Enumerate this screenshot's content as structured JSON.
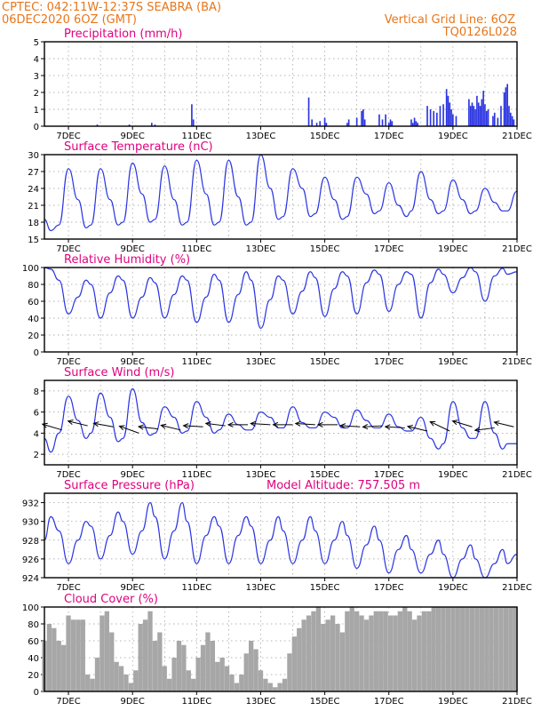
{
  "header": {
    "left_line1": "CPTEC:   042:11W-12:37S   SEABRA (BA)",
    "left_line2": "06DEC2020 6OZ (GMT)",
    "right_line1": "Vertical Grid Line: 6OZ",
    "right_line2": "TQ0126L028"
  },
  "colors": {
    "header": "#e8761a",
    "title": "#e0007f",
    "series": "#2a34e0",
    "cloud": "#a7a7a7"
  },
  "x_ticks": [
    "7DEC",
    "9DEC",
    "11DEC",
    "13DEC",
    "15DEC",
    "17DEC",
    "19DEC",
    "21DEC"
  ],
  "chart_data": [
    {
      "id": "precip",
      "type": "bar",
      "title": "Precipitation (mm/h)",
      "ylim": [
        0,
        5
      ],
      "yticks": [
        "0",
        "1",
        "2",
        "3",
        "4",
        "5"
      ],
      "x_range_days": [
        6.25,
        21
      ],
      "x": [
        7.9,
        8.9,
        9.6,
        9.7,
        10.85,
        10.9,
        14.5,
        14.6,
        14.75,
        14.85,
        15.0,
        15.05,
        15.7,
        15.75,
        16.0,
        16.15,
        16.2,
        16.25,
        16.7,
        16.8,
        16.9,
        17.0,
        17.05,
        17.1,
        17.7,
        17.75,
        17.8,
        17.85,
        17.9,
        18.2,
        18.3,
        18.4,
        18.5,
        18.6,
        18.7,
        18.8,
        18.85,
        18.9,
        18.95,
        19.0,
        19.1,
        19.5,
        19.55,
        19.6,
        19.65,
        19.7,
        19.75,
        19.8,
        19.85,
        19.9,
        19.95,
        20.0,
        20.05,
        20.1,
        20.25,
        20.3,
        20.4,
        20.5,
        20.6,
        20.65,
        20.7,
        20.75,
        20.8,
        20.85,
        20.9
      ],
      "values": [
        0.1,
        0.1,
        0.2,
        0.1,
        1.3,
        0.4,
        1.7,
        0.4,
        0.2,
        0.3,
        0.5,
        0.2,
        0.2,
        0.4,
        0.5,
        0.9,
        1.0,
        0.4,
        0.7,
        0.4,
        0.7,
        0.2,
        0.4,
        0.3,
        0.4,
        0.2,
        0.5,
        0.3,
        0.2,
        1.2,
        1.0,
        0.9,
        0.8,
        1.2,
        1.3,
        2.2,
        1.8,
        1.4,
        1.0,
        0.7,
        0.6,
        1.6,
        1.2,
        1.4,
        1.2,
        1.0,
        1.8,
        1.4,
        1.2,
        1.6,
        2.1,
        1.3,
        0.9,
        1.0,
        0.6,
        0.8,
        0.5,
        1.2,
        2.0,
        2.3,
        2.5,
        1.2,
        0.8,
        0.6,
        0.4
      ]
    },
    {
      "id": "temp",
      "type": "line",
      "title": "Surface Temperature (nC)",
      "ylim": [
        15,
        30
      ],
      "yticks": [
        "15",
        "18",
        "21",
        "24",
        "27",
        "30"
      ],
      "x_range_days": [
        6.25,
        21
      ],
      "x": [
        6.25,
        6.45,
        6.7,
        7.0,
        7.3,
        7.55,
        7.7,
        8.0,
        8.3,
        8.55,
        8.7,
        9.0,
        9.3,
        9.55,
        9.7,
        10.0,
        10.3,
        10.55,
        10.7,
        11.0,
        11.3,
        11.55,
        11.7,
        12.0,
        12.3,
        12.55,
        12.7,
        13.0,
        13.3,
        13.55,
        13.7,
        14.0,
        14.3,
        14.55,
        14.7,
        15.0,
        15.3,
        15.55,
        15.7,
        16.0,
        16.3,
        16.55,
        16.7,
        17.0,
        17.3,
        17.55,
        17.7,
        18.0,
        18.3,
        18.55,
        18.7,
        19.0,
        19.3,
        19.55,
        19.7,
        20.0,
        20.3,
        20.55,
        20.7,
        21.0
      ],
      "values": [
        18.5,
        16.5,
        17.5,
        27.5,
        22,
        17,
        17.5,
        27.5,
        22,
        17.5,
        18,
        28.5,
        23,
        18,
        18.5,
        28,
        22,
        17.5,
        18,
        29,
        23,
        17.5,
        18,
        29,
        22.5,
        17.5,
        18,
        30,
        24,
        18.5,
        19,
        27.5,
        24,
        19,
        19.5,
        26,
        22,
        18.5,
        19,
        26,
        23,
        19.5,
        20,
        25,
        21,
        19,
        20,
        27,
        22,
        19.5,
        20,
        25.5,
        22,
        19.5,
        20,
        24,
        21.5,
        20,
        20,
        23.5
      ]
    },
    {
      "id": "rh",
      "type": "line",
      "title": "Relative Humidity (%)",
      "ylim": [
        0,
        100
      ],
      "yticks": [
        "0",
        "20",
        "40",
        "60",
        "80",
        "100"
      ],
      "x_range_days": [
        6.25,
        21
      ],
      "x": [
        6.25,
        6.45,
        6.7,
        7.0,
        7.3,
        7.55,
        7.7,
        8.0,
        8.3,
        8.55,
        8.7,
        9.0,
        9.3,
        9.55,
        9.7,
        10.0,
        10.3,
        10.55,
        10.7,
        11.0,
        11.3,
        11.55,
        11.7,
        12.0,
        12.3,
        12.55,
        12.7,
        13.0,
        13.3,
        13.55,
        13.7,
        14.0,
        14.3,
        14.55,
        14.7,
        15.0,
        15.3,
        15.55,
        15.7,
        16.0,
        16.3,
        16.55,
        16.7,
        17.0,
        17.3,
        17.55,
        17.7,
        18.0,
        18.3,
        18.55,
        18.7,
        19.0,
        19.3,
        19.55,
        19.7,
        20.0,
        20.3,
        20.55,
        20.7,
        21.0
      ],
      "values": [
        100,
        98,
        85,
        45,
        65,
        85,
        80,
        40,
        70,
        90,
        85,
        40,
        65,
        88,
        82,
        40,
        68,
        90,
        85,
        35,
        65,
        92,
        85,
        35,
        68,
        95,
        85,
        28,
        62,
        90,
        85,
        45,
        72,
        95,
        88,
        42,
        75,
        95,
        90,
        45,
        82,
        97,
        92,
        48,
        80,
        95,
        92,
        40,
        82,
        98,
        92,
        70,
        88,
        100,
        95,
        60,
        90,
        99,
        92,
        95
      ]
    },
    {
      "id": "wind",
      "type": "line",
      "title": "Surface Wind (m/s)",
      "ylim": [
        1,
        9
      ],
      "yticks": [
        "2",
        "4",
        "6",
        "8"
      ],
      "x_range_days": [
        6.25,
        21
      ],
      "x": [
        6.25,
        6.45,
        6.7,
        7.0,
        7.3,
        7.55,
        7.7,
        8.0,
        8.3,
        8.55,
        8.7,
        9.0,
        9.3,
        9.55,
        9.7,
        10.0,
        10.3,
        10.55,
        10.7,
        11.0,
        11.3,
        11.55,
        11.7,
        12.0,
        12.3,
        12.55,
        12.7,
        13.0,
        13.3,
        13.55,
        13.7,
        14.0,
        14.3,
        14.55,
        14.7,
        15.0,
        15.3,
        15.55,
        15.7,
        16.0,
        16.3,
        16.55,
        16.7,
        17.0,
        17.3,
        17.55,
        17.7,
        18.0,
        18.3,
        18.55,
        18.7,
        19.0,
        19.3,
        19.55,
        19.7,
        20.0,
        20.3,
        20.55,
        20.7,
        21.0
      ],
      "values": [
        3.5,
        2.2,
        4,
        7.5,
        5.2,
        3.5,
        4,
        7.8,
        5.5,
        3.2,
        3.5,
        8.2,
        5,
        3.8,
        4,
        6.5,
        5.5,
        4,
        4.2,
        7,
        5.5,
        4,
        4.3,
        5.8,
        4.8,
        4.3,
        4.3,
        6,
        5.5,
        4.5,
        4.5,
        6.5,
        5,
        4.5,
        4.5,
        6,
        5.5,
        4.5,
        4.5,
        6.2,
        5.2,
        4.5,
        4.5,
        5.8,
        4.6,
        4.2,
        4.2,
        5.5,
        3.5,
        2.5,
        3,
        7,
        4.5,
        3.5,
        3.5,
        7,
        4,
        2.5,
        3,
        3
      ]
    },
    {
      "id": "pressure",
      "type": "line",
      "title": "Surface Pressure (hPa)",
      "annotation": "Model Altitude: 757.505 m",
      "ylim": [
        924,
        933
      ],
      "yticks": [
        "924",
        "926",
        "928",
        "930",
        "932"
      ],
      "x_range_days": [
        6.25,
        21
      ],
      "x": [
        6.25,
        6.45,
        6.7,
        7.0,
        7.3,
        7.55,
        7.7,
        8.0,
        8.3,
        8.55,
        8.7,
        9.0,
        9.3,
        9.55,
        9.7,
        10.0,
        10.3,
        10.55,
        10.7,
        11.0,
        11.3,
        11.55,
        11.7,
        12.0,
        12.3,
        12.55,
        12.7,
        13.0,
        13.3,
        13.55,
        13.7,
        14.0,
        14.3,
        14.55,
        14.7,
        15.0,
        15.3,
        15.55,
        15.7,
        16.0,
        16.3,
        16.55,
        16.7,
        17.0,
        17.3,
        17.55,
        17.7,
        18.0,
        18.3,
        18.55,
        18.7,
        19.0,
        19.3,
        19.55,
        19.7,
        20.0,
        20.3,
        20.55,
        20.7,
        21.0
      ],
      "values": [
        928,
        930.5,
        929,
        925.5,
        928,
        930,
        929.5,
        926,
        928.5,
        931,
        930,
        926.5,
        929,
        932,
        930.5,
        926,
        929,
        932,
        930,
        925.5,
        928.5,
        930.5,
        929.5,
        925.5,
        928.5,
        930.5,
        929.5,
        925.5,
        928,
        930.5,
        929,
        925.5,
        928,
        930.5,
        929,
        925.5,
        928,
        930,
        928.5,
        925,
        927.5,
        929.5,
        928,
        924.5,
        927,
        928.5,
        927,
        924.5,
        926.5,
        928,
        926.5,
        924,
        926,
        927.5,
        926,
        924,
        925.5,
        927,
        925.5,
        926.5
      ]
    },
    {
      "id": "cloud",
      "type": "bar",
      "title": "Cloud Cover (%)",
      "ylim": [
        0,
        100
      ],
      "yticks": [
        "0",
        "20",
        "40",
        "60",
        "80",
        "100"
      ],
      "x_range_days": [
        6.25,
        21
      ],
      "x": [
        6.25,
        6.4,
        6.55,
        6.7,
        6.85,
        7.0,
        7.15,
        7.3,
        7.45,
        7.6,
        7.75,
        7.9,
        8.05,
        8.2,
        8.35,
        8.5,
        8.65,
        8.8,
        8.95,
        9.1,
        9.25,
        9.4,
        9.55,
        9.7,
        9.85,
        10.0,
        10.15,
        10.3,
        10.45,
        10.6,
        10.75,
        10.9,
        11.05,
        11.2,
        11.35,
        11.5,
        11.65,
        11.8,
        11.95,
        12.1,
        12.25,
        12.4,
        12.55,
        12.7,
        12.85,
        13.0,
        13.15,
        13.3,
        13.45,
        13.6,
        13.75,
        13.9,
        14.05,
        14.2,
        14.35,
        14.5,
        14.65,
        14.8,
        14.95,
        15.1,
        15.25,
        15.4,
        15.55,
        15.7,
        15.85,
        16.0,
        16.15,
        16.3,
        16.45,
        16.6,
        16.75,
        16.9,
        17.05,
        17.2,
        17.35,
        17.5,
        17.65,
        17.8,
        17.95,
        18.1,
        18.25,
        18.4,
        18.55,
        18.7,
        18.85,
        19.0,
        19.15,
        19.3,
        19.45,
        19.6,
        19.75,
        19.9,
        20.05,
        20.2,
        20.35,
        20.5,
        20.65,
        20.8,
        20.95
      ],
      "values": [
        60,
        80,
        75,
        60,
        55,
        90,
        85,
        85,
        85,
        20,
        15,
        40,
        90,
        95,
        70,
        35,
        30,
        20,
        10,
        25,
        80,
        85,
        95,
        60,
        70,
        30,
        15,
        40,
        60,
        55,
        25,
        15,
        40,
        55,
        70,
        60,
        35,
        40,
        30,
        20,
        10,
        20,
        45,
        60,
        50,
        25,
        15,
        10,
        5,
        10,
        15,
        45,
        65,
        75,
        85,
        90,
        95,
        100,
        80,
        85,
        90,
        80,
        70,
        95,
        100,
        95,
        90,
        85,
        90,
        95,
        95,
        95,
        90,
        90,
        95,
        100,
        95,
        85,
        90,
        95,
        95,
        100,
        100,
        100,
        100,
        100,
        100,
        100,
        100,
        100,
        100,
        100,
        100,
        100,
        100,
        100,
        100,
        100,
        100
      ]
    }
  ],
  "wind_arrows": {
    "x": [
      6.8,
      7.6,
      8.4,
      9.2,
      9.8,
      10.5,
      11.2,
      11.9,
      12.6,
      13.3,
      14.0,
      14.7,
      15.4,
      16.1,
      16.8,
      17.5,
      18.2,
      18.9,
      19.6,
      20.3,
      20.9
    ],
    "y": [
      4.3,
      4.7,
      4.6,
      4.0,
      4.4,
      4.3,
      4.6,
      4.7,
      4.8,
      4.8,
      4.8,
      4.8,
      4.8,
      4.6,
      4.7,
      4.5,
      4.2,
      4.2,
      4.6,
      4.5,
      4.6
    ],
    "u": [
      -1,
      -1,
      -1,
      -1,
      -1,
      -1,
      -1,
      -1,
      -1,
      -1,
      -1,
      -1,
      -1,
      -1,
      -1,
      -1,
      -1,
      -1,
      -1,
      -1,
      -1
    ],
    "v": [
      0.5,
      0.4,
      0.3,
      0.6,
      0.2,
      0.4,
      0.1,
      0.2,
      0.0,
      0.1,
      0.0,
      0.1,
      0.0,
      0.1,
      -0.1,
      0.1,
      0.4,
      0.8,
      0.5,
      -0.2,
      0.4
    ]
  }
}
